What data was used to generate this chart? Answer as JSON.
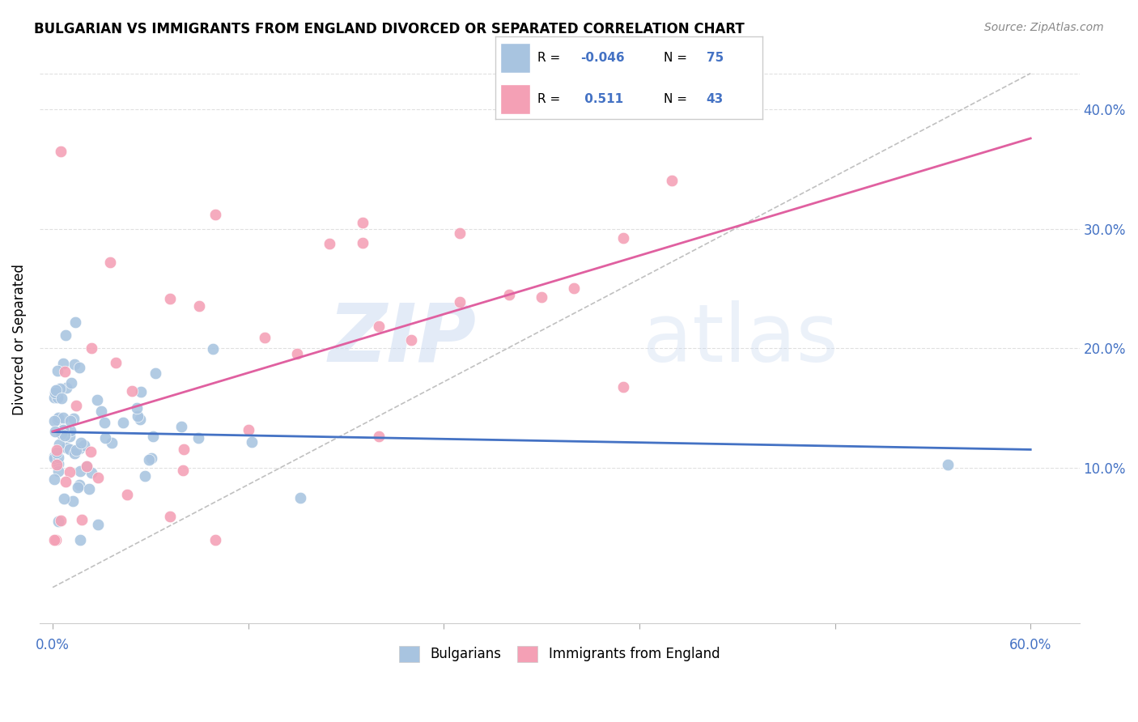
{
  "title": "BULGARIAN VS IMMIGRANTS FROM ENGLAND DIVORCED OR SEPARATED CORRELATION CHART",
  "source": "Source: ZipAtlas.com",
  "ylabel": "Divorced or Separated",
  "xlim": [
    0.0,
    0.6
  ],
  "ylim": [
    -0.02,
    0.43
  ],
  "yticks": [
    0.1,
    0.2,
    0.3,
    0.4
  ],
  "ytick_labels": [
    "10.0%",
    "20.0%",
    "30.0%",
    "40.0%"
  ],
  "legend_r1": "-0.046",
  "legend_n1": "75",
  "legend_r2": "0.511",
  "legend_n2": "43",
  "blue_color": "#a8c4e0",
  "pink_color": "#f4a0b5",
  "blue_line_color": "#4472c4",
  "pink_line_color": "#e060a0",
  "dashed_line_color": "#c0c0c0",
  "watermark_zip": "ZIP",
  "watermark_atlas": "atlas",
  "background_color": "#ffffff",
  "grid_color": "#e0e0e0",
  "text_color": "#4472c4"
}
